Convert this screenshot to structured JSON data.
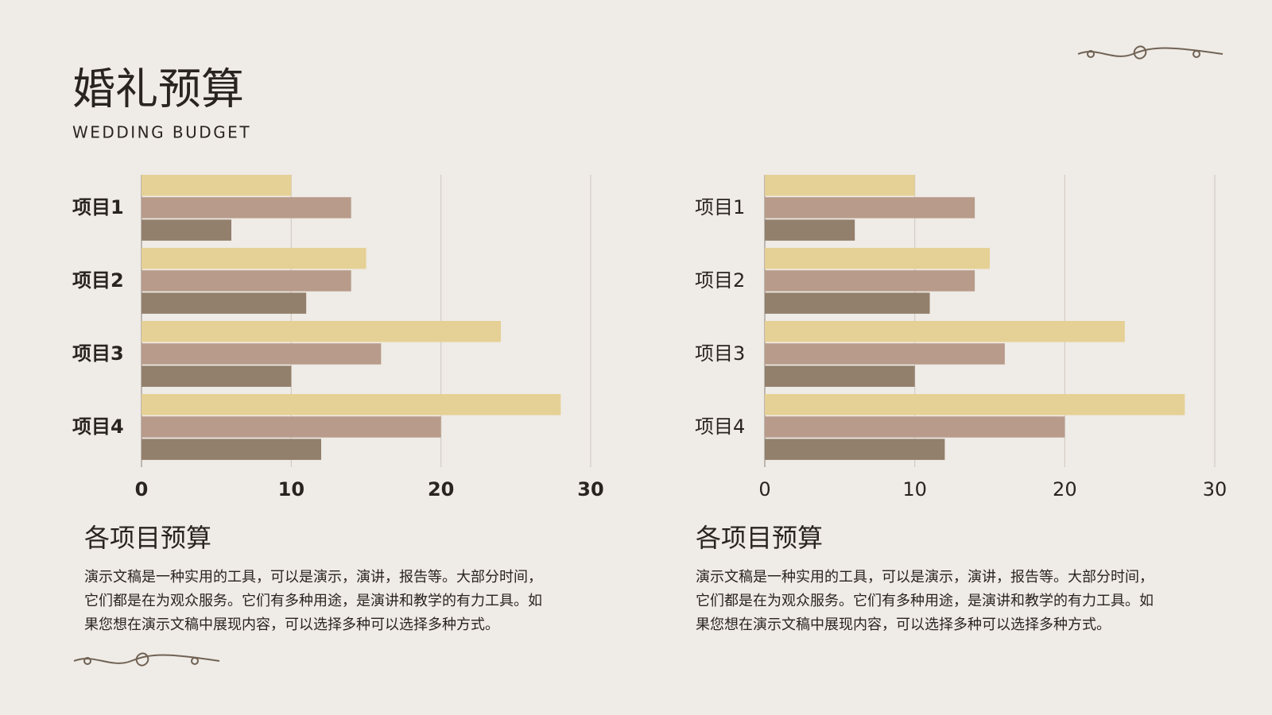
{
  "header": {
    "title": "婚礼预算",
    "subtitle": "WEDDING BUDGET"
  },
  "chart_data": [
    {
      "type": "barh",
      "categories": [
        "项目1",
        "项目2",
        "项目3",
        "项目4"
      ],
      "series": [
        {
          "color": "#e5d095",
          "values": [
            10,
            15,
            24,
            28
          ]
        },
        {
          "color": "#b89b8a",
          "values": [
            14,
            14,
            16,
            20
          ]
        },
        {
          "color": "#927f6c",
          "values": [
            6,
            11,
            10,
            12
          ]
        }
      ],
      "xlim": [
        0,
        30
      ],
      "xticks": [
        0,
        10,
        20,
        30
      ],
      "grid": true,
      "caption": "各项目预算",
      "description": [
        "演示文稿是一种实用的工具，可以是演示，演讲，报告等。大部分时间，",
        "它们都是在为观众服务。它们有多种用途，是演讲和教学的有力工具。如",
        "果您想在演示文稿中展现内容，可以选择多种可以选择多种方式。"
      ]
    },
    {
      "type": "barh",
      "categories": [
        "项目1",
        "项目2",
        "项目3",
        "项目4"
      ],
      "series": [
        {
          "color": "#e5d095",
          "values": [
            10,
            15,
            24,
            28
          ]
        },
        {
          "color": "#b89b8a",
          "values": [
            14,
            14,
            16,
            20
          ]
        },
        {
          "color": "#927f6c",
          "values": [
            6,
            11,
            10,
            12
          ]
        }
      ],
      "xlim": [
        0,
        30
      ],
      "xticks": [
        0,
        10,
        20,
        30
      ],
      "grid": true,
      "caption": "各项目预算",
      "description": [
        "演示文稿是一种实用的工具，可以是演示，演讲，报告等。大部分时间，",
        "它们都是在为观众服务。它们有多种用途，是演讲和教学的有力工具。如",
        "果您想在演示文稿中展现内容，可以选择多种可以选择多种方式。"
      ]
    }
  ]
}
